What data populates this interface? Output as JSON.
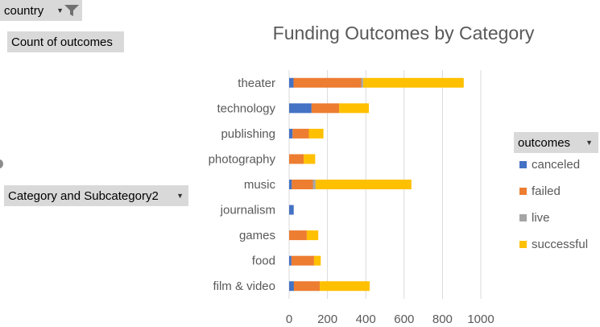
{
  "filters": {
    "country_label": "country",
    "values_label": "Count of outcomes",
    "category_label": "Category and Subcategory2",
    "legend_title": "outcomes"
  },
  "chart_data": {
    "type": "bar",
    "orientation": "horizontal",
    "stacked": true,
    "title": "Funding Outcomes by Category",
    "xlabel": "",
    "ylabel": "",
    "xlim": [
      0,
      1000
    ],
    "x_ticks": [
      "0",
      "200",
      "400",
      "600",
      "800",
      "1000"
    ],
    "grid": true,
    "legend_position": "right",
    "categories": [
      "theater",
      "technology",
      "publishing",
      "photography",
      "music",
      "journalism",
      "games",
      "food",
      "film & video"
    ],
    "series": [
      {
        "name": "canceled",
        "color": "#4472c4",
        "values": [
          23,
          117,
          18,
          0,
          14,
          24,
          0,
          12,
          25
        ]
      },
      {
        "name": "failed",
        "color": "#ed7d31",
        "values": [
          353,
          144,
          85,
          76,
          110,
          0,
          92,
          118,
          135
        ]
      },
      {
        "name": "live",
        "color": "#a5a5a5",
        "values": [
          10,
          0,
          0,
          0,
          14,
          0,
          0,
          0,
          0
        ]
      },
      {
        "name": "successful",
        "color": "#ffc000",
        "values": [
          525,
          155,
          76,
          60,
          500,
          0,
          60,
          35,
          260
        ]
      }
    ]
  }
}
